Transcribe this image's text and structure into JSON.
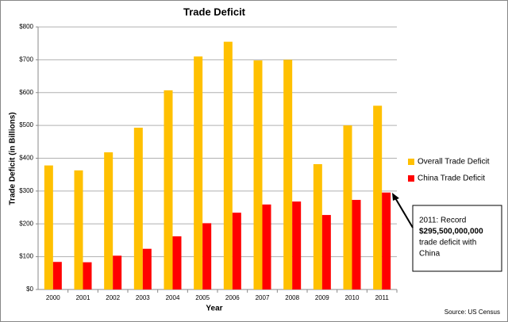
{
  "chart_data": {
    "type": "bar",
    "title": "Trade Deficit",
    "x_label": "Year",
    "y_label": "Trade Deficit (in Billions)",
    "categories": [
      "2000",
      "2001",
      "2002",
      "2003",
      "2004",
      "2005",
      "2006",
      "2007",
      "2008",
      "2009",
      "2010",
      "2011"
    ],
    "series": [
      {
        "name": "Overall Trade Deficit",
        "color": "#ffc000",
        "values": [
          378,
          363,
          418,
          493,
          607,
          710,
          755,
          698,
          700,
          382,
          500,
          560
        ]
      },
      {
        "name": "China Trade Deficit",
        "color": "#ff0000",
        "values": [
          84,
          83,
          103,
          124,
          162,
          202,
          234,
          259,
          268,
          227,
          273,
          295.5
        ]
      }
    ],
    "ylim": [
      0,
      800
    ],
    "yticks": [
      {
        "value": 0,
        "label": "$0"
      },
      {
        "value": 100,
        "label": "$100"
      },
      {
        "value": 200,
        "label": "$200"
      },
      {
        "value": 300,
        "label": "$300"
      },
      {
        "value": 400,
        "label": "$400"
      },
      {
        "value": 500,
        "label": "$500"
      },
      {
        "value": 600,
        "label": "$600"
      },
      {
        "value": 700,
        "label": "$700"
      },
      {
        "value": 800,
        "label": "$800"
      }
    ],
    "grid": true,
    "legend": "right",
    "annotation": [
      "2011: Record",
      "$295,500,000,000",
      "trade deficit with",
      "China"
    ],
    "source": "Source: US Census"
  }
}
